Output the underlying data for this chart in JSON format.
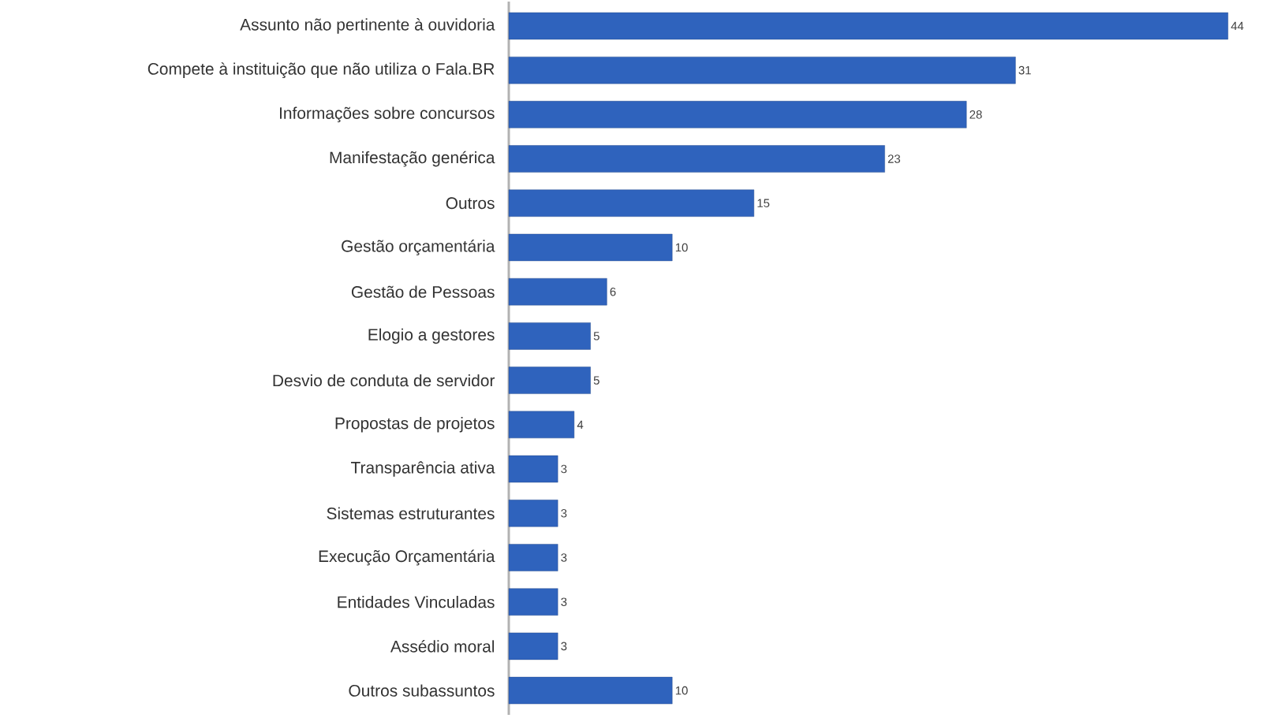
{
  "chart_data": {
    "type": "bar",
    "orientation": "horizontal",
    "categories": [
      "Assunto não pertinente à ouvidoria",
      "Compete à instituição que não utiliza o Fala.BR",
      "Informações sobre concursos",
      "Manifestação genérica",
      "Outros",
      "Gestão orçamentária",
      "Gestão de Pessoas",
      "Elogio a gestores",
      "Desvio de conduta de servidor",
      "Propostas de projetos",
      "Transparência ativa",
      "Sistemas estruturantes",
      "Execução Orçamentária",
      "Entidades Vinculadas",
      "Assédio moral",
      "Outros subassuntos"
    ],
    "values": [
      44,
      31,
      28,
      23,
      15,
      10,
      6,
      5,
      5,
      4,
      3,
      3,
      3,
      3,
      3,
      10
    ],
    "color": "#2f63bd",
    "data_labels": true
  }
}
